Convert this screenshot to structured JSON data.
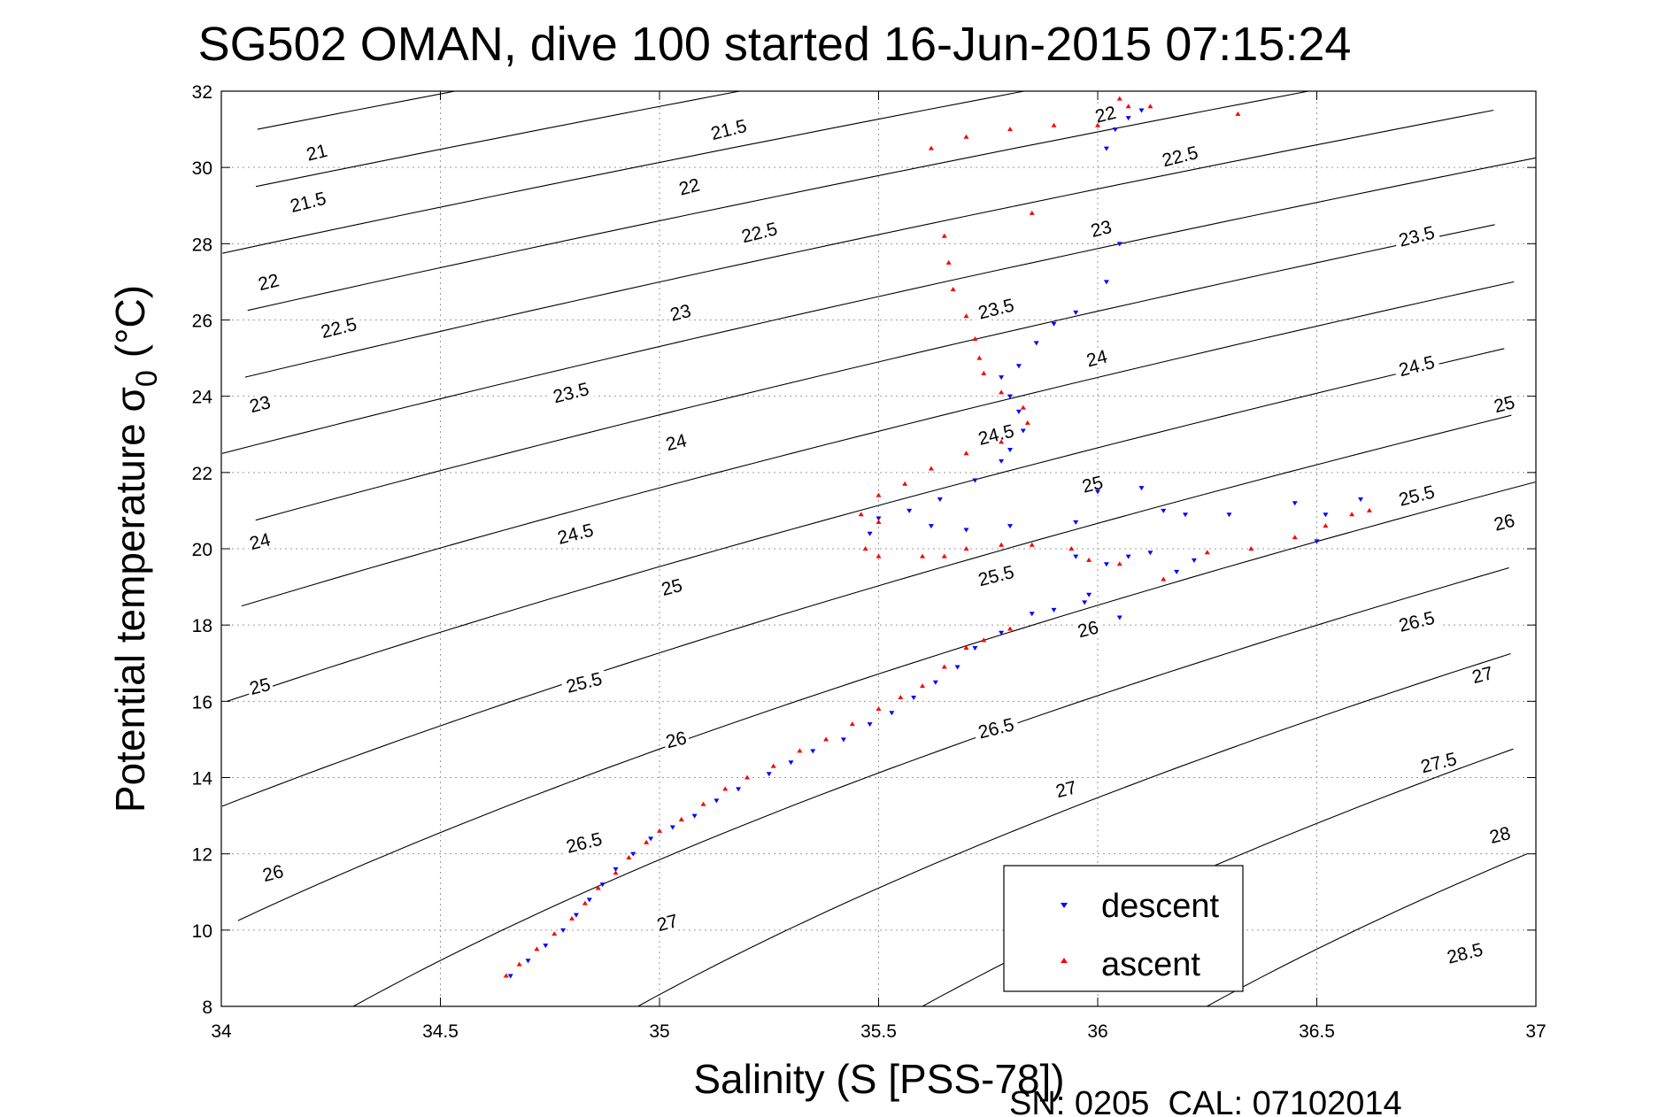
{
  "title": "SG502 OMAN, dive 100 started 16-Jun-2015 07:15:24",
  "footer": "SN: 0205  CAL: 07102014",
  "chart_data": {
    "type": "scatter",
    "title": "SG502 OMAN, dive 100 started 16-Jun-2015 07:15:24",
    "xlabel": "Salinity (S [PSS-78])",
    "ylabel_main": "Potential temperature σ",
    "ylabel_sub": "0",
    "ylabel_unit": "(°C)",
    "xlim": [
      34,
      37
    ],
    "ylim": [
      8,
      32
    ],
    "xticks": [
      "34",
      "34.5",
      "35",
      "35.5",
      "36",
      "36.5",
      "37"
    ],
    "yticks": [
      "8",
      "10",
      "12",
      "14",
      "16",
      "18",
      "20",
      "22",
      "24",
      "26",
      "28",
      "30",
      "32"
    ],
    "grid": true,
    "legend_position": "bottom-right",
    "colors": {
      "descent": "#0000ff",
      "ascent": "#ff0000",
      "contour": "#000000"
    },
    "contours": {
      "levels": [
        21,
        21.5,
        22,
        22.5,
        23,
        23.5,
        24,
        24.5,
        25,
        25.5,
        26,
        26.5,
        27,
        27.5,
        28,
        28.5
      ],
      "labels": [
        {
          "text": "21",
          "x": 34.22,
          "y": 30.3
        },
        {
          "text": "21.5",
          "x": 34.2,
          "y": 29.0
        },
        {
          "text": "22",
          "x": 34.11,
          "y": 26.9
        },
        {
          "text": "22.5",
          "x": 34.27,
          "y": 25.7
        },
        {
          "text": "23",
          "x": 34.09,
          "y": 23.7
        },
        {
          "text": "24",
          "x": 34.09,
          "y": 20.1
        },
        {
          "text": "25",
          "x": 34.09,
          "y": 16.3
        },
        {
          "text": "26",
          "x": 34.12,
          "y": 11.4
        },
        {
          "text": "21.5",
          "x": 35.16,
          "y": 30.9
        },
        {
          "text": "22",
          "x": 35.07,
          "y": 29.4
        },
        {
          "text": "22.5",
          "x": 35.23,
          "y": 28.2
        },
        {
          "text": "23",
          "x": 35.05,
          "y": 26.1
        },
        {
          "text": "23.5",
          "x": 34.8,
          "y": 24.0
        },
        {
          "text": "24",
          "x": 35.04,
          "y": 22.7
        },
        {
          "text": "24.5",
          "x": 34.81,
          "y": 20.3
        },
        {
          "text": "25",
          "x": 35.03,
          "y": 18.9
        },
        {
          "text": "25.5",
          "x": 34.83,
          "y": 16.4
        },
        {
          "text": "26",
          "x": 35.04,
          "y": 14.9
        },
        {
          "text": "26.5",
          "x": 34.83,
          "y": 12.2
        },
        {
          "text": "27",
          "x": 35.02,
          "y": 10.1
        },
        {
          "text": "22",
          "x": 36.02,
          "y": 31.3
        },
        {
          "text": "22.5",
          "x": 36.19,
          "y": 30.2
        },
        {
          "text": "23",
          "x": 36.01,
          "y": 28.3
        },
        {
          "text": "23.5",
          "x": 35.77,
          "y": 26.2
        },
        {
          "text": "24",
          "x": 36.0,
          "y": 24.9
        },
        {
          "text": "24.5",
          "x": 35.77,
          "y": 22.9
        },
        {
          "text": "25",
          "x": 35.99,
          "y": 21.6
        },
        {
          "text": "25.5",
          "x": 35.77,
          "y": 19.2
        },
        {
          "text": "26",
          "x": 35.98,
          "y": 17.8
        },
        {
          "text": "26.5",
          "x": 35.77,
          "y": 15.2
        },
        {
          "text": "27",
          "x": 35.93,
          "y": 13.6
        },
        {
          "text": "23.5",
          "x": 36.73,
          "y": 28.1
        },
        {
          "text": "24.5",
          "x": 36.73,
          "y": 24.7
        },
        {
          "text": "25",
          "x": 36.93,
          "y": 23.7
        },
        {
          "text": "25.5",
          "x": 36.73,
          "y": 21.3
        },
        {
          "text": "26",
          "x": 36.93,
          "y": 20.6
        },
        {
          "text": "26.5",
          "x": 36.73,
          "y": 18.0
        },
        {
          "text": "27",
          "x": 36.88,
          "y": 16.6
        },
        {
          "text": "27.5",
          "x": 36.78,
          "y": 14.3
        },
        {
          "text": "28",
          "x": 36.92,
          "y": 12.4
        },
        {
          "text": "28.5",
          "x": 36.84,
          "y": 9.3
        }
      ]
    },
    "series": [
      {
        "name": "descent",
        "marker": "triangle-down",
        "points": [
          [
            34.66,
            8.8
          ],
          [
            34.7,
            9.2
          ],
          [
            34.74,
            9.6
          ],
          [
            34.78,
            10.0
          ],
          [
            34.81,
            10.4
          ],
          [
            34.84,
            10.8
          ],
          [
            34.87,
            11.2
          ],
          [
            34.9,
            11.6
          ],
          [
            34.94,
            12.0
          ],
          [
            34.98,
            12.4
          ],
          [
            35.03,
            12.7
          ],
          [
            35.08,
            13.0
          ],
          [
            35.13,
            13.4
          ],
          [
            35.18,
            13.7
          ],
          [
            35.25,
            14.1
          ],
          [
            35.3,
            14.4
          ],
          [
            35.35,
            14.7
          ],
          [
            35.42,
            15.0
          ],
          [
            35.48,
            15.4
          ],
          [
            35.53,
            15.7
          ],
          [
            35.58,
            16.1
          ],
          [
            35.63,
            16.5
          ],
          [
            35.68,
            16.9
          ],
          [
            35.72,
            17.4
          ],
          [
            35.78,
            17.8
          ],
          [
            35.85,
            18.3
          ],
          [
            35.9,
            18.4
          ],
          [
            35.98,
            18.8
          ],
          [
            36.02,
            19.6
          ],
          [
            36.07,
            19.8
          ],
          [
            36.12,
            19.9
          ],
          [
            36.18,
            19.4
          ],
          [
            36.22,
            19.7
          ],
          [
            35.48,
            20.4
          ],
          [
            35.5,
            20.8
          ],
          [
            35.57,
            21.0
          ],
          [
            35.64,
            21.3
          ],
          [
            35.72,
            21.8
          ],
          [
            35.78,
            22.3
          ],
          [
            35.8,
            22.6
          ],
          [
            35.83,
            23.1
          ],
          [
            35.82,
            23.6
          ],
          [
            35.8,
            24.0
          ],
          [
            35.78,
            24.5
          ],
          [
            35.82,
            24.8
          ],
          [
            35.86,
            25.4
          ],
          [
            35.9,
            25.9
          ],
          [
            35.95,
            26.2
          ],
          [
            36.02,
            27.0
          ],
          [
            36.05,
            28.0
          ],
          [
            36.02,
            30.5
          ],
          [
            36.04,
            31.0
          ],
          [
            36.07,
            31.3
          ],
          [
            36.1,
            31.5
          ],
          [
            35.62,
            20.6
          ],
          [
            35.7,
            20.5
          ],
          [
            35.8,
            20.6
          ],
          [
            35.95,
            20.7
          ],
          [
            36.0,
            21.5
          ],
          [
            36.1,
            21.6
          ],
          [
            36.15,
            21.0
          ],
          [
            36.2,
            20.9
          ],
          [
            36.3,
            20.9
          ],
          [
            36.45,
            21.2
          ],
          [
            36.52,
            20.9
          ],
          [
            36.6,
            21.3
          ],
          [
            36.5,
            20.2
          ],
          [
            35.95,
            19.8
          ],
          [
            35.97,
            18.6
          ],
          [
            36.05,
            18.2
          ]
        ]
      },
      {
        "name": "ascent",
        "marker": "triangle-up",
        "points": [
          [
            34.65,
            8.8
          ],
          [
            34.68,
            9.1
          ],
          [
            34.72,
            9.5
          ],
          [
            34.76,
            9.9
          ],
          [
            34.8,
            10.3
          ],
          [
            34.83,
            10.7
          ],
          [
            34.86,
            11.1
          ],
          [
            34.9,
            11.5
          ],
          [
            34.93,
            11.9
          ],
          [
            34.97,
            12.3
          ],
          [
            35.0,
            12.6
          ],
          [
            35.05,
            12.9
          ],
          [
            35.1,
            13.3
          ],
          [
            35.15,
            13.7
          ],
          [
            35.2,
            14.0
          ],
          [
            35.26,
            14.3
          ],
          [
            35.32,
            14.7
          ],
          [
            35.38,
            15.0
          ],
          [
            35.44,
            15.4
          ],
          [
            35.5,
            15.8
          ],
          [
            35.55,
            16.1
          ],
          [
            35.6,
            16.4
          ],
          [
            35.65,
            16.9
          ],
          [
            35.7,
            17.4
          ],
          [
            35.74,
            17.6
          ],
          [
            35.8,
            17.9
          ],
          [
            35.78,
            20.1
          ],
          [
            35.7,
            20.0
          ],
          [
            35.6,
            19.8
          ],
          [
            35.5,
            19.8
          ],
          [
            35.47,
            20.0
          ],
          [
            35.5,
            20.7
          ],
          [
            35.46,
            20.9
          ],
          [
            35.5,
            21.4
          ],
          [
            35.56,
            21.7
          ],
          [
            35.62,
            22.1
          ],
          [
            35.7,
            22.5
          ],
          [
            35.78,
            22.8
          ],
          [
            35.84,
            23.3
          ],
          [
            35.83,
            23.7
          ],
          [
            35.78,
            24.1
          ],
          [
            35.74,
            24.6
          ],
          [
            35.73,
            25.0
          ],
          [
            35.72,
            25.5
          ],
          [
            35.7,
            26.1
          ],
          [
            35.67,
            26.8
          ],
          [
            35.66,
            27.5
          ],
          [
            35.65,
            28.2
          ],
          [
            35.62,
            30.5
          ],
          [
            35.7,
            30.8
          ],
          [
            35.8,
            31.0
          ],
          [
            35.9,
            31.1
          ],
          [
            36.0,
            31.1
          ],
          [
            36.07,
            31.6
          ],
          [
            36.05,
            31.8
          ],
          [
            36.12,
            31.6
          ],
          [
            36.32,
            31.4
          ],
          [
            35.85,
            28.8
          ],
          [
            35.98,
            19.7
          ],
          [
            36.05,
            19.6
          ],
          [
            36.15,
            19.2
          ],
          [
            36.25,
            19.9
          ],
          [
            36.35,
            20.0
          ],
          [
            36.45,
            20.3
          ],
          [
            36.52,
            20.6
          ],
          [
            36.58,
            20.9
          ],
          [
            36.62,
            21.0
          ],
          [
            35.85,
            20.1
          ],
          [
            35.94,
            20.0
          ],
          [
            35.65,
            19.8
          ]
        ]
      }
    ]
  }
}
